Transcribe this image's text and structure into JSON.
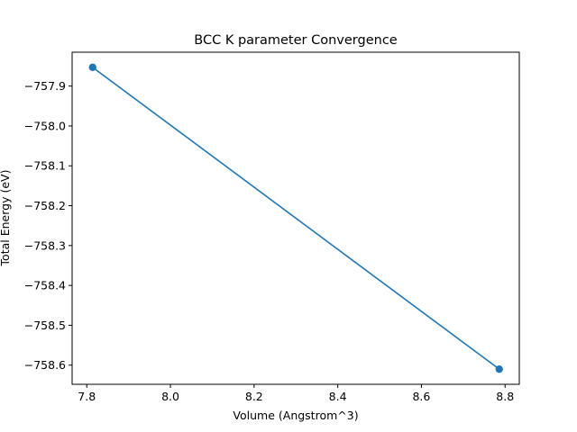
{
  "chart_data": {
    "type": "line",
    "title": "BCC K parameter Convergence",
    "xlabel": "Volume (Angstrom^3)",
    "ylabel": "Total Energy (eV)",
    "x": [
      7.814,
      8.786
    ],
    "series": [
      {
        "values": [
          -757.853,
          -758.61
        ]
      }
    ],
    "xlim": [
      7.765,
      8.834
    ],
    "ylim": [
      -758.648,
      -757.815
    ],
    "xticks": [
      7.8,
      8.0,
      8.2,
      8.4,
      8.6,
      8.8
    ],
    "xtick_labels": [
      "7.8",
      "8.0",
      "8.2",
      "8.4",
      "8.6",
      "8.8"
    ],
    "yticks": [
      -757.9,
      -758.0,
      -758.1,
      -758.2,
      -758.3,
      -758.4,
      -758.5,
      -758.6
    ],
    "ytick_labels": [
      "−757.9",
      "−758.0",
      "−758.1",
      "−758.2",
      "−758.3",
      "−758.4",
      "−758.5",
      "−758.6"
    ],
    "grid": false,
    "line_color": "#1f77b4",
    "marker": "circle"
  }
}
